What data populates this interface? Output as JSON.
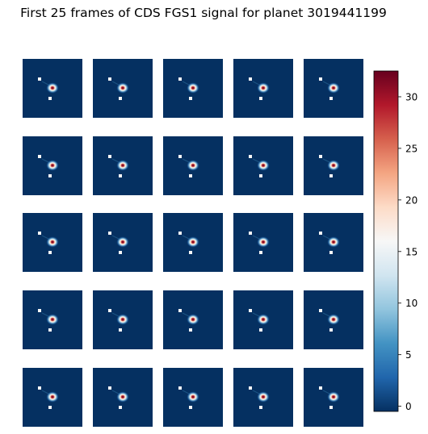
{
  "title": "First 25 frames of CDS FGS1 signal for planet 3019441199",
  "chart_data": {
    "type": "heatmap",
    "title": "First 25 frames of CDS FGS1 signal for planet 3019441199",
    "layout": "5x5 grid of image frames",
    "frame_count": 25,
    "colormap": "RdBu_r",
    "background_color": "#053061",
    "frames": [
      {
        "frame": 1,
        "peak": 32.5,
        "min": -0.5
      },
      {
        "frame": 2,
        "peak": 32.5,
        "min": -0.5
      },
      {
        "frame": 3,
        "peak": 32.5,
        "min": -0.5
      },
      {
        "frame": 4,
        "peak": 32.5,
        "min": -0.5
      },
      {
        "frame": 5,
        "peak": 32.5,
        "min": -0.5
      },
      {
        "frame": 6,
        "peak": 32.5,
        "min": -0.5
      },
      {
        "frame": 7,
        "peak": 32.5,
        "min": -0.5
      },
      {
        "frame": 8,
        "peak": 32.5,
        "min": -0.5
      },
      {
        "frame": 9,
        "peak": 32.5,
        "min": -0.5
      },
      {
        "frame": 10,
        "peak": 32.5,
        "min": -0.5
      },
      {
        "frame": 11,
        "peak": 32.5,
        "min": -0.5
      },
      {
        "frame": 12,
        "peak": 32.5,
        "min": -0.5
      },
      {
        "frame": 13,
        "peak": 32.5,
        "min": -0.5
      },
      {
        "frame": 14,
        "peak": 32.5,
        "min": -0.5
      },
      {
        "frame": 15,
        "peak": 32.5,
        "min": -0.5
      },
      {
        "frame": 16,
        "peak": 32.5,
        "min": -0.5
      },
      {
        "frame": 17,
        "peak": 32.5,
        "min": -0.5
      },
      {
        "frame": 18,
        "peak": 32.5,
        "min": -0.5
      },
      {
        "frame": 19,
        "peak": 32.5,
        "min": -0.5
      },
      {
        "frame": 20,
        "peak": 32.5,
        "min": -0.5
      },
      {
        "frame": 21,
        "peak": 32.5,
        "min": -0.5
      },
      {
        "frame": 22,
        "peak": 32.5,
        "min": -0.5
      },
      {
        "frame": 23,
        "peak": 32.5,
        "min": -0.5
      },
      {
        "frame": 24,
        "peak": 32.5,
        "min": -0.5
      },
      {
        "frame": 25,
        "peak": 32.5,
        "min": -0.5
      }
    ],
    "colorbar": {
      "min": -0.5,
      "max": 32.5,
      "ticks": [
        0,
        5,
        10,
        15,
        20,
        25,
        30
      ],
      "tick_labels": [
        "0",
        "5",
        "10",
        "15",
        "20",
        "25",
        "30"
      ]
    }
  }
}
